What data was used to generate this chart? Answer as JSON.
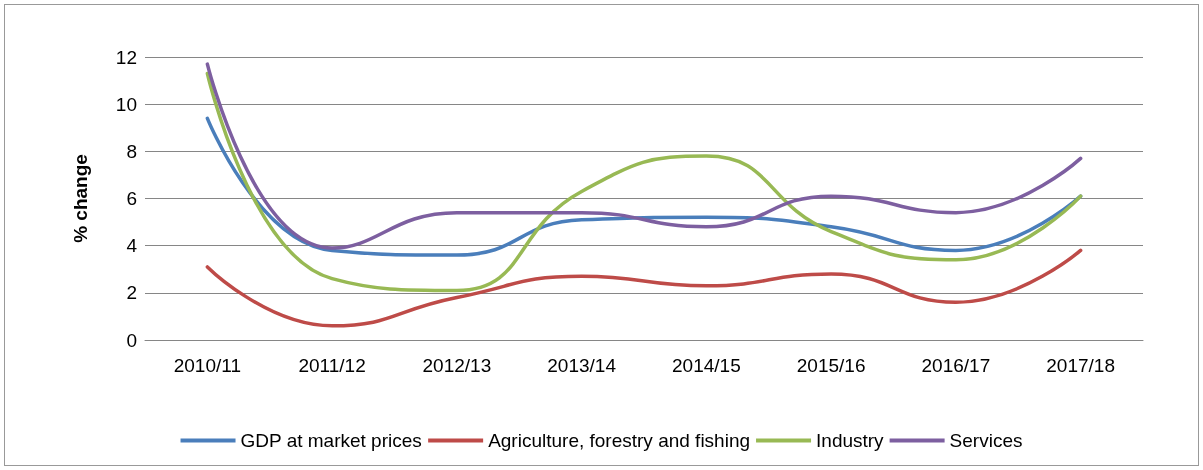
{
  "chart_data": {
    "type": "line",
    "ylabel": "% change",
    "categories": [
      "2010/11",
      "2011/12",
      "2012/13",
      "2013/14",
      "2014/15",
      "2015/16",
      "2016/17",
      "2017/18"
    ],
    "series": [
      {
        "name": "GDP at market prices",
        "color": "#4a7ebb",
        "values": [
          9.4,
          3.8,
          3.6,
          5.1,
          5.2,
          4.8,
          3.8,
          6.1
        ]
      },
      {
        "name": "Agriculture, forestry and fishing",
        "color": "#be4b48",
        "values": [
          3.1,
          0.6,
          1.8,
          2.7,
          2.3,
          2.8,
          1.6,
          3.8
        ]
      },
      {
        "name": "Industry",
        "color": "#98b954",
        "values": [
          11.3,
          2.6,
          2.1,
          6.3,
          7.8,
          4.6,
          3.4,
          6.1
        ]
      },
      {
        "name": "Services",
        "color": "#7d5fa0",
        "values": [
          11.7,
          3.9,
          5.4,
          5.4,
          4.8,
          6.1,
          5.4,
          7.7
        ]
      }
    ],
    "ylim": [
      0,
      12
    ],
    "yticks": [
      0,
      2,
      4,
      6,
      8,
      10,
      12
    ],
    "grid": "y",
    "legend": "bottom",
    "marker": "none",
    "line_style": "solid"
  }
}
